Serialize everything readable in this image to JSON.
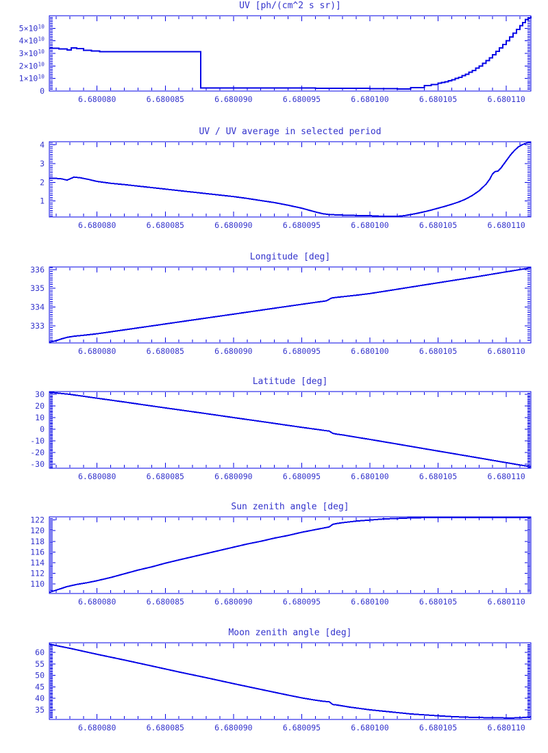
{
  "colors": {
    "background": "#ffffff",
    "line": "#0000e6",
    "axis": "#0000e6",
    "text": "#3333cc"
  },
  "x_axis": {
    "description": "x = 6.68 + x_micro * 1e-6 ; same axis on all six charts",
    "lim_micro": [
      76.5,
      111.8
    ],
    "majors_micro": [
      80,
      85,
      90,
      95,
      100,
      105,
      110
    ],
    "labels": [
      "6.680080",
      "6.680085",
      "6.680090",
      "6.680095",
      "6.680100",
      "6.680105",
      "6.680110"
    ],
    "minor_step_micro": 1
  },
  "chart_data": [
    {
      "id": "uv",
      "type": "line",
      "title": "UV [ph/(cm^2 s sr)]",
      "step": true,
      "y_axis": {
        "lim": [
          0,
          60000000000.0
        ],
        "majors": [
          {
            "v": 0,
            "label": "0"
          },
          {
            "v": 10000000000.0,
            "label": "1×10^10"
          },
          {
            "v": 20000000000.0,
            "label": "2×10^10"
          },
          {
            "v": 30000000000.0,
            "label": "3×10^10"
          },
          {
            "v": 40000000000.0,
            "label": "4×10^10"
          },
          {
            "v": 50000000000.0,
            "label": "5×10^10"
          }
        ],
        "minor_step": 1250000000.0
      },
      "series": {
        "x_micro": [
          76.5,
          77.2,
          77.8,
          78.1,
          78.5,
          79,
          79.6,
          80.2,
          87.6,
          87.6,
          89,
          92,
          96,
          99,
          100,
          101,
          102,
          103,
          104,
          104.5,
          105,
          105.25,
          105.5,
          105.75,
          106,
          106.25,
          106.5,
          106.75,
          107,
          107.25,
          107.5,
          107.75,
          108,
          108.25,
          108.5,
          108.75,
          109,
          109.25,
          109.5,
          109.75,
          110,
          110.25,
          110.5,
          110.75,
          111,
          111.2,
          111.4,
          111.6,
          111.8
        ],
        "y": [
          34200000000.0,
          33600000000.0,
          32800000000.0,
          34400000000.0,
          33800000000.0,
          32500000000.0,
          31800000000.0,
          31500000000.0,
          31500000000.0,
          2500000000.0,
          2500000000.0,
          2400000000.0,
          2300000000.0,
          2100000000.0,
          2000000000.0,
          1800000000.0,
          1700000000.0,
          2800000000.0,
          4300000000.0,
          5200000000.0,
          6200000000.0,
          6800000000.0,
          7500000000.0,
          8200000000.0,
          9000000000.0,
          10000000000.0,
          11000000000.0,
          12200000000.0,
          13500000000.0,
          15000000000.0,
          16500000000.0,
          18200000000.0,
          20000000000.0,
          22000000000.0,
          24200000000.0,
          26500000000.0,
          29000000000.0,
          31600000000.0,
          34300000000.0,
          37000000000.0,
          40000000000.0,
          43000000000.0,
          46000000000.0,
          49000000000.0,
          52000000000.0,
          54500000000.0,
          57000000000.0,
          58500000000.0,
          59700000000.0
        ]
      }
    },
    {
      "id": "uv-ratio",
      "type": "line",
      "title": "UV / UV average in selected period",
      "step": false,
      "y_axis": {
        "lim": [
          0.15,
          4.17
        ],
        "majors": [
          {
            "v": 1,
            "label": "1"
          },
          {
            "v": 2,
            "label": "2"
          },
          {
            "v": 3,
            "label": "3"
          },
          {
            "v": 4,
            "label": "4"
          }
        ],
        "minor_step": 0.1
      },
      "series": {
        "x_micro": [
          76.5,
          77.3,
          77.8,
          78.3,
          78.8,
          79.4,
          80,
          81,
          82,
          83,
          84,
          85,
          86,
          87,
          88,
          89,
          90,
          91,
          92,
          93,
          94,
          95,
          95.5,
          96,
          96.5,
          97,
          98,
          99,
          100,
          100.5,
          101,
          101.5,
          102,
          102.5,
          103,
          103.5,
          104,
          104.5,
          105,
          105.5,
          106,
          106.5,
          107,
          107.5,
          108,
          108.5,
          108.8,
          109,
          109.2,
          109.4,
          109.6,
          109.8,
          110,
          110.3,
          110.6,
          110.9,
          111.2,
          111.5,
          111.8
        ],
        "y": [
          2.22,
          2.2,
          2.12,
          2.28,
          2.24,
          2.15,
          2.05,
          1.95,
          1.88,
          1.8,
          1.72,
          1.64,
          1.56,
          1.48,
          1.4,
          1.32,
          1.24,
          1.14,
          1.03,
          0.92,
          0.78,
          0.62,
          0.52,
          0.42,
          0.33,
          0.28,
          0.25,
          0.23,
          0.22,
          0.2,
          0.17,
          0.16,
          0.17,
          0.22,
          0.28,
          0.35,
          0.43,
          0.52,
          0.62,
          0.72,
          0.83,
          0.95,
          1.1,
          1.3,
          1.55,
          1.9,
          2.2,
          2.45,
          2.58,
          2.6,
          2.75,
          2.95,
          3.15,
          3.45,
          3.7,
          3.9,
          4.02,
          4.1,
          4.18
        ]
      }
    },
    {
      "id": "longitude",
      "type": "line",
      "title": "Longitude [deg]",
      "step": false,
      "y_axis": {
        "lim": [
          332.08,
          336.14
        ],
        "majors": [
          {
            "v": 333,
            "label": "333"
          },
          {
            "v": 334,
            "label": "334"
          },
          {
            "v": 335,
            "label": "335"
          },
          {
            "v": 336,
            "label": "336"
          }
        ],
        "minor_step": 0.1
      },
      "series": {
        "x_micro": [
          76.5,
          77,
          77.4,
          77.8,
          78.3,
          79,
          80,
          82,
          84,
          86,
          88,
          90,
          92,
          94,
          96,
          96.8,
          97.2,
          97.6,
          98,
          99,
          100,
          102,
          104,
          106,
          108,
          110,
          111,
          111.8
        ],
        "y": [
          332.12,
          332.2,
          332.3,
          332.38,
          332.44,
          332.49,
          332.57,
          332.78,
          332.99,
          333.2,
          333.41,
          333.62,
          333.83,
          334.04,
          334.25,
          334.33,
          334.48,
          334.52,
          334.55,
          334.63,
          334.72,
          334.95,
          335.18,
          335.41,
          335.64,
          335.88,
          336.0,
          336.1
        ]
      }
    },
    {
      "id": "latitude",
      "type": "line",
      "title": "Latitude [deg]",
      "step": false,
      "y_axis": {
        "lim": [
          -33.6,
          32.4
        ],
        "majors": [
          {
            "v": -30,
            "label": "-30"
          },
          {
            "v": -20,
            "label": "-20"
          },
          {
            "v": -10,
            "label": "-10"
          },
          {
            "v": 0,
            "label": "0"
          },
          {
            "v": 10,
            "label": "10"
          },
          {
            "v": 20,
            "label": "20"
          },
          {
            "v": 30,
            "label": "30"
          }
        ],
        "minor_step": 1
      },
      "series": {
        "x_micro": [
          76.5,
          78,
          80,
          82,
          84,
          86,
          88,
          90,
          92,
          94,
          95,
          96,
          96.6,
          97,
          97.3,
          97.6,
          98,
          99,
          100,
          102,
          104,
          106,
          108,
          110,
          111,
          111.8
        ],
        "y": [
          32.2,
          30.0,
          26.7,
          23.4,
          20.0,
          16.7,
          13.4,
          10.0,
          6.7,
          3.3,
          1.6,
          0.0,
          -1.0,
          -1.6,
          -3.6,
          -4.3,
          -4.9,
          -6.9,
          -8.8,
          -12.8,
          -16.8,
          -20.8,
          -24.8,
          -28.8,
          -30.8,
          -32.3
        ]
      }
    },
    {
      "id": "sun-zenith",
      "type": "line",
      "title": "Sun zenith angle [deg]",
      "step": false,
      "y_axis": {
        "lim": [
          108.2,
          122.6
        ],
        "majors": [
          {
            "v": 110,
            "label": "110"
          },
          {
            "v": 112,
            "label": "112"
          },
          {
            "v": 114,
            "label": "114"
          },
          {
            "v": 116,
            "label": "116"
          },
          {
            "v": 118,
            "label": "118"
          },
          {
            "v": 120,
            "label": "120"
          },
          {
            "v": 122,
            "label": "122"
          }
        ],
        "minor_step": 0.25
      },
      "series": {
        "x_micro": [
          76.5,
          77.2,
          77.8,
          78.5,
          79.2,
          80,
          81,
          82,
          83,
          84,
          85,
          86,
          87,
          88,
          89,
          90,
          91,
          92,
          93,
          94,
          95,
          96,
          96.6,
          97,
          97.3,
          97.6,
          98,
          98.5,
          99,
          99.5,
          100,
          100.5,
          101,
          102,
          103,
          104,
          105,
          106,
          107,
          108,
          109,
          110,
          111,
          111.8
        ],
        "y": [
          108.4,
          109.0,
          109.5,
          109.9,
          110.2,
          110.6,
          111.2,
          111.9,
          112.6,
          113.2,
          113.9,
          114.5,
          115.1,
          115.7,
          116.3,
          116.9,
          117.5,
          118.0,
          118.6,
          119.1,
          119.7,
          120.2,
          120.5,
          120.7,
          121.2,
          121.35,
          121.5,
          121.65,
          121.8,
          121.9,
          122.0,
          122.1,
          122.2,
          122.3,
          122.4,
          122.45,
          122.5,
          122.52,
          122.53,
          122.53,
          122.52,
          122.5,
          122.48,
          122.45
        ]
      }
    },
    {
      "id": "moon-zenith",
      "type": "line",
      "title": "Moon zenith angle [deg]",
      "step": false,
      "y_axis": {
        "lim": [
          30.8,
          64.2
        ],
        "majors": [
          {
            "v": 35,
            "label": "35"
          },
          {
            "v": 40,
            "label": "40"
          },
          {
            "v": 45,
            "label": "45"
          },
          {
            "v": 50,
            "label": "50"
          },
          {
            "v": 55,
            "label": "55"
          },
          {
            "v": 60,
            "label": "60"
          }
        ],
        "minor_step": 0.5
      },
      "series": {
        "x_micro": [
          76.5,
          78,
          80,
          82,
          84,
          86,
          88,
          90,
          92,
          94,
          95,
          96,
          96.6,
          97,
          97.3,
          97.6,
          98,
          98.5,
          99,
          99.5,
          100,
          101,
          102,
          103,
          104,
          105,
          106,
          107,
          108,
          109,
          110,
          110.5,
          111,
          111.4,
          111.8
        ],
        "y": [
          63.6,
          61.8,
          59.2,
          56.7,
          54.1,
          51.5,
          49.0,
          46.4,
          43.9,
          41.4,
          40.2,
          39.2,
          38.7,
          38.5,
          37.3,
          37.1,
          36.7,
          36.2,
          35.8,
          35.4,
          35.0,
          34.4,
          33.8,
          33.2,
          32.8,
          32.4,
          32.05,
          31.8,
          31.65,
          31.55,
          31.45,
          31.45,
          31.55,
          31.7,
          31.95
        ]
      }
    }
  ]
}
